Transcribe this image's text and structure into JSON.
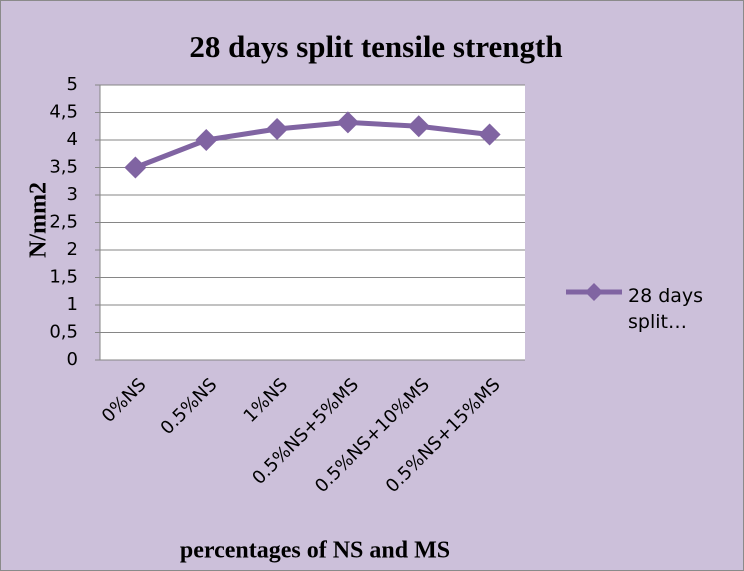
{
  "chart_data": {
    "type": "line",
    "title": "28 days split tensile strength",
    "x_label": "percentages of NS and MS",
    "y_label": "N/mm2",
    "categories": [
      "0%NS",
      "0.5%NS",
      "1%NS",
      "0.5%NS+5%MS",
      "0.5%NS+10%MS",
      "0.5%NS+15%MS"
    ],
    "series": [
      {
        "name": "28 days split…",
        "color": "#8064a2",
        "values": [
          3.5,
          4.0,
          4.2,
          4.32,
          4.25,
          4.1
        ]
      }
    ],
    "ylim": [
      0,
      5
    ],
    "yticks": [
      0,
      {
        "value": 0.5,
        "label": "0,5"
      },
      1,
      {
        "value": 1.5,
        "label": "1,5"
      },
      2,
      {
        "value": 2.5,
        "label": "2,5"
      },
      3,
      {
        "value": 3.5,
        "label": "3,5"
      },
      4,
      {
        "value": 4.5,
        "label": "4,5"
      },
      5
    ],
    "grid": true,
    "legend": "right"
  }
}
